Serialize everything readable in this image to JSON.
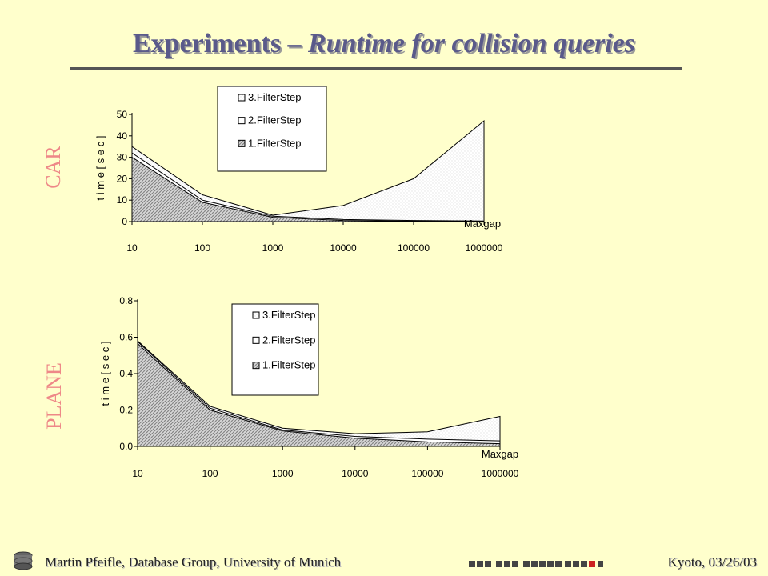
{
  "slide": {
    "title_part1": "Experiments – ",
    "title_part2": "Runtime for collision queries",
    "footer_left": "Martin Pfeifle, Database Group, University of Munich",
    "footer_right": "Kyoto, 03/26/03"
  },
  "colors": {
    "background": "#ffffcc",
    "title": "#5a5a8a",
    "side_label": "#ee8888"
  },
  "chart_data": [
    {
      "side_label": "CAR",
      "type": "area",
      "x": [
        "10",
        "100",
        "1000",
        "10000",
        "100000",
        "1000000"
      ],
      "xlabel": "Maxgap",
      "ylabel": "t i m e [ s e c ]",
      "ylim": [
        0,
        50
      ],
      "yticks": [
        "0",
        "10",
        "20",
        "30",
        "40",
        "50"
      ],
      "legend_position": "top-center",
      "series": [
        {
          "name": "3.FilterStep",
          "values": [
            35,
            12.5,
            3,
            7.5,
            20,
            47
          ]
        },
        {
          "name": "2.FilterStep",
          "values": [
            32,
            10,
            2.5,
            1,
            0.5,
            0.3
          ]
        },
        {
          "name": "1.FilterStep",
          "values": [
            30,
            9,
            2,
            0.5,
            0.2,
            0.1
          ]
        }
      ]
    },
    {
      "side_label": "PLANE",
      "type": "area",
      "x": [
        "10",
        "100",
        "1000",
        "10000",
        "100000",
        "1000000"
      ],
      "xlabel": "Maxgap",
      "ylabel": "t i m e [ s e c ]",
      "ylim": [
        0,
        0.8
      ],
      "yticks": [
        "0.0",
        "0.2",
        "0.4",
        "0.6",
        "0.8"
      ],
      "legend_position": "top-center",
      "series": [
        {
          "name": "3.FilterStep",
          "values": [
            0.58,
            0.22,
            0.1,
            0.07,
            0.08,
            0.165
          ]
        },
        {
          "name": "2.FilterStep",
          "values": [
            0.575,
            0.21,
            0.09,
            0.055,
            0.04,
            0.03
          ]
        },
        {
          "name": "1.FilterStep",
          "values": [
            0.565,
            0.2,
            0.085,
            0.045,
            0.025,
            0.015
          ]
        }
      ]
    }
  ]
}
